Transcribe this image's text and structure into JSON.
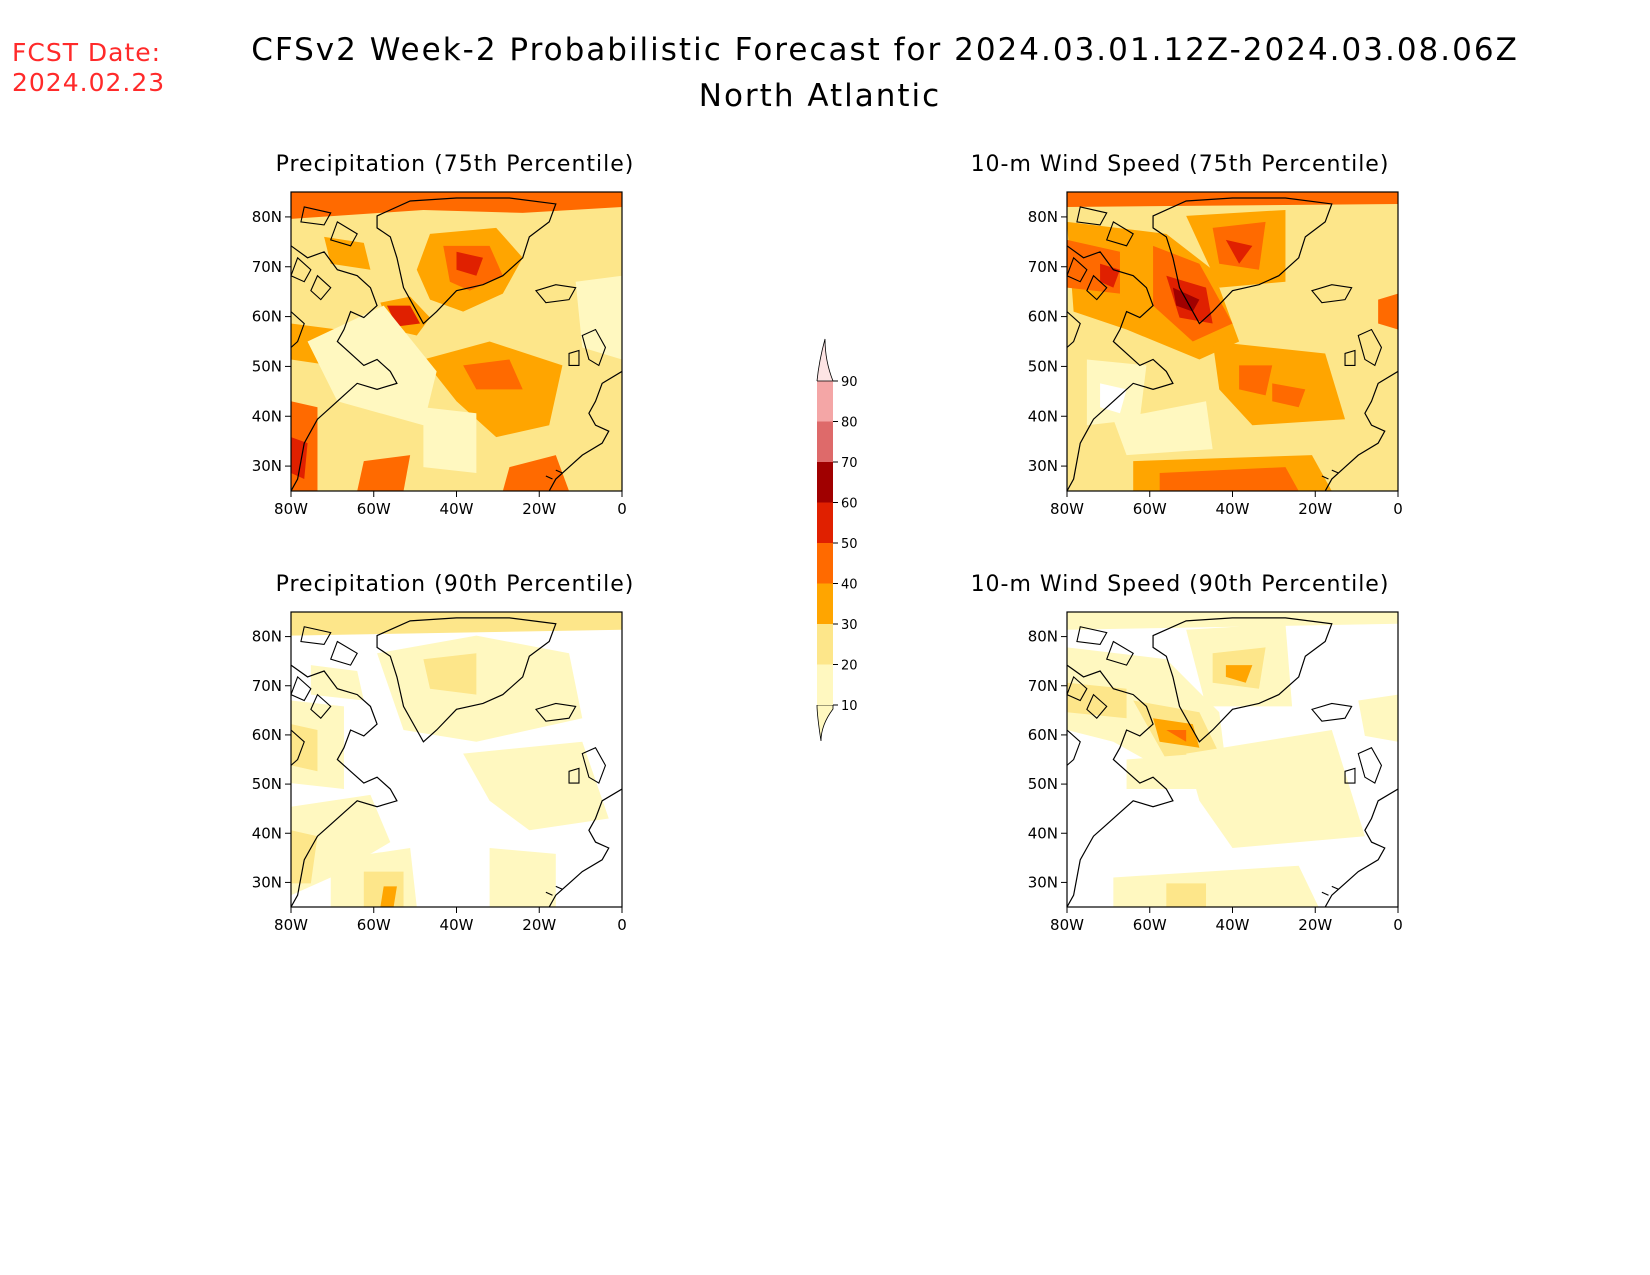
{
  "header": {
    "fcst_label": "FCST Date:",
    "fcst_date": "2024.02.23",
    "title": "CFSv2 Week-2 Probabilistic Forecast for 2024.03.01.12Z-2024.03.08.06Z",
    "subtitle": "North Atlantic"
  },
  "map_extent": {
    "lon": [
      -80,
      0
    ],
    "lat": [
      25,
      85
    ]
  },
  "axes": {
    "lat_ticks": [
      "80N",
      "70N",
      "60N",
      "50N",
      "40N",
      "30N"
    ],
    "lon_ticks": [
      "80W",
      "60W",
      "40W",
      "20W",
      "0"
    ]
  },
  "panels": [
    {
      "id": "precip75",
      "title": "Precipitation (75th Percentile)"
    },
    {
      "id": "wind75",
      "title": "10-m Wind Speed (75th Percentile)"
    },
    {
      "id": "precip90",
      "title": "Precipitation (90th Percentile)"
    },
    {
      "id": "wind90",
      "title": "10-m Wind Speed (90th Percentile)"
    }
  ],
  "colorbar": {
    "levels": [
      "10",
      "20",
      "30",
      "40",
      "50",
      "60",
      "70",
      "80",
      "90"
    ],
    "colors": [
      "#fff8c0",
      "#fde68a",
      "#ffa500",
      "#ff6a00",
      "#e02000",
      "#a00000",
      "#de6a6a",
      "#f4a6a6",
      "#fde4e4"
    ]
  },
  "coast_color": "#000000"
}
